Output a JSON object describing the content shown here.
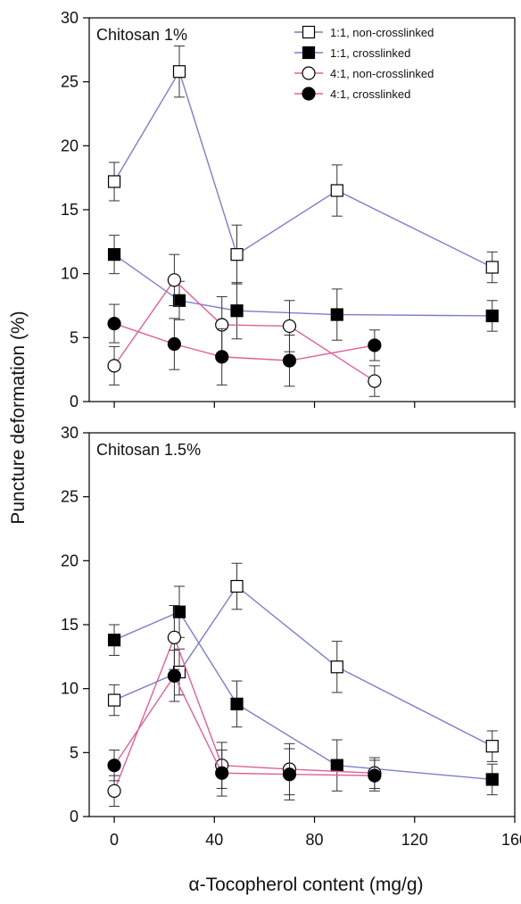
{
  "figure": {
    "ylabel": "Puncture deformation (%)",
    "xlabel": "α-Tocopherol content (mg/g)"
  },
  "legend": [
    {
      "label": "1:1, non-crosslinked",
      "color": "#7b7fc8",
      "marker": "square-open"
    },
    {
      "label": "1:1, crosslinked",
      "color": "#7b7fc8",
      "marker": "square-filled"
    },
    {
      "label": "4:1, non-crosslinked",
      "color": "#e0609a",
      "marker": "circle-open"
    },
    {
      "label": "4:1, crosslinked",
      "color": "#e0609a",
      "marker": "circle-filled"
    }
  ],
  "chart_data": [
    {
      "type": "line",
      "title": "Chitosan 1%",
      "xlim": [
        -10,
        160
      ],
      "ylim": [
        0,
        30
      ],
      "yticks": [
        0,
        5,
        10,
        15,
        20,
        25,
        30
      ],
      "xticks": [
        0,
        40,
        80,
        120,
        160
      ],
      "show_xtick_labels": false,
      "series": [
        {
          "name": "1:1, non-crosslinked",
          "color": "#7b7fc8",
          "marker": "square-open",
          "x": [
            0,
            26,
            49,
            89,
            151
          ],
          "y": [
            17.2,
            25.8,
            11.5,
            16.5,
            10.5
          ],
          "err": [
            1.5,
            2.0,
            2.3,
            2.0,
            1.2
          ]
        },
        {
          "name": "1:1, crosslinked",
          "color": "#7b7fc8",
          "marker": "square-filled",
          "x": [
            0,
            26,
            49,
            89,
            151
          ],
          "y": [
            11.5,
            7.9,
            7.1,
            6.8,
            6.7
          ],
          "err": [
            1.5,
            1.5,
            2.2,
            2.0,
            1.2
          ]
        },
        {
          "name": "4:1, non-crosslinked",
          "color": "#e0609a",
          "marker": "circle-open",
          "x": [
            0,
            24,
            43,
            70,
            104
          ],
          "y": [
            2.8,
            9.5,
            6.0,
            5.9,
            1.6
          ],
          "err": [
            1.5,
            2.0,
            2.2,
            2.0,
            1.2
          ]
        },
        {
          "name": "4:1, crosslinked",
          "color": "#e0609a",
          "marker": "circle-filled",
          "x": [
            0,
            24,
            43,
            70,
            104
          ],
          "y": [
            6.1,
            4.5,
            3.5,
            3.2,
            4.4
          ],
          "err": [
            1.5,
            2.0,
            2.2,
            2.0,
            1.2
          ]
        }
      ]
    },
    {
      "type": "line",
      "title": "Chitosan 1.5%",
      "xlim": [
        -10,
        160
      ],
      "ylim": [
        0,
        30
      ],
      "yticks": [
        0,
        5,
        10,
        15,
        20,
        25,
        30
      ],
      "xticks": [
        0,
        40,
        80,
        120,
        160
      ],
      "show_xtick_labels": true,
      "series": [
        {
          "name": "1:1, non-crosslinked",
          "color": "#7b7fc8",
          "marker": "square-open",
          "x": [
            0,
            26,
            49,
            89,
            151
          ],
          "y": [
            9.1,
            11.3,
            18.0,
            11.7,
            5.5
          ],
          "err": [
            1.2,
            1.8,
            1.8,
            2.0,
            1.2
          ]
        },
        {
          "name": "1:1, crosslinked",
          "color": "#7b7fc8",
          "marker": "square-filled",
          "x": [
            0,
            26,
            49,
            89,
            151
          ],
          "y": [
            13.8,
            16.0,
            8.8,
            4.0,
            2.9
          ],
          "err": [
            1.2,
            2.0,
            1.8,
            2.0,
            1.2
          ]
        },
        {
          "name": "4:1, non-crosslinked",
          "color": "#e0609a",
          "marker": "circle-open",
          "x": [
            0,
            24,
            43,
            70,
            104
          ],
          "y": [
            2.0,
            14.0,
            4.0,
            3.7,
            3.4
          ],
          "err": [
            1.2,
            2.5,
            1.8,
            2.0,
            1.2
          ]
        },
        {
          "name": "4:1, crosslinked",
          "color": "#e0609a",
          "marker": "circle-filled",
          "x": [
            0,
            24,
            43,
            70,
            104
          ],
          "y": [
            4.0,
            11.0,
            3.4,
            3.3,
            3.2
          ],
          "err": [
            1.2,
            2.0,
            1.8,
            2.0,
            1.2
          ]
        }
      ]
    }
  ]
}
